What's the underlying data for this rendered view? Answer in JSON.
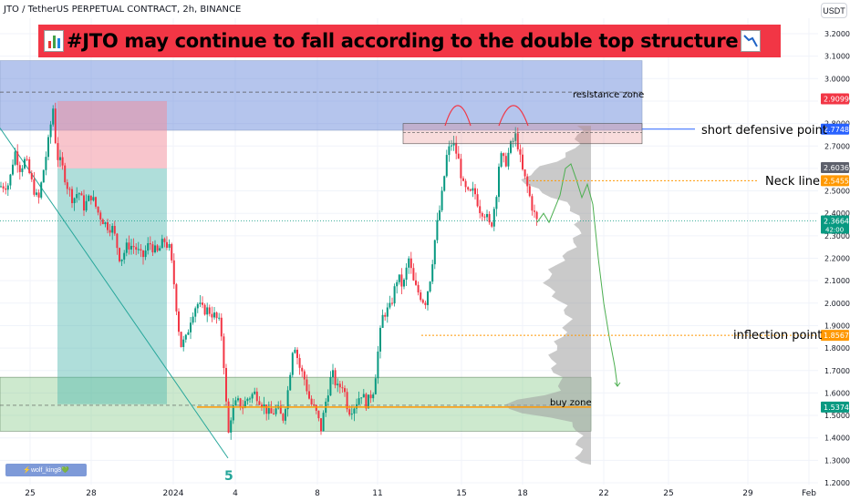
{
  "header": {
    "symbol_line": "JTO / TetherUS PERPETUAL CONTRACT, 2h, BINANCE",
    "currency_button": "USDT"
  },
  "banner": {
    "text": "#JTO may continue to fall according to the double top structure",
    "left_icon": "bar-chart-emoji-icon",
    "right_icon": "chart-decreasing-emoji-icon",
    "color": "#f23645"
  },
  "annotations": {
    "resistance_zone": "resistance zone",
    "short_defensive_point": "short defensive point",
    "neck_line": "Neck line",
    "inflection_point": "inflection point",
    "buy_zone": "buy zone",
    "wave_label": "5",
    "watermark": "⚡wolf_king8💚"
  },
  "chart_data": {
    "type": "candlestick",
    "title": "#JTO may continue to fall according to the double top structure",
    "symbol": "JTO / TetherUS PERPETUAL CONTRACT",
    "timeframe": "2h",
    "exchange": "BINANCE",
    "xlabel": "",
    "ylabel": "",
    "ylim": [
      1.2,
      3.3
    ],
    "grid": true,
    "x_tick_labels": [
      "25",
      "28",
      "2024",
      "4",
      "8",
      "11",
      "15",
      "18",
      "22",
      "25",
      "29",
      "Feb"
    ],
    "y_tick_labels": [
      "3.2000",
      "3.1000",
      "3.0000",
      "2.9000",
      "2.8000",
      "2.7000",
      "2.6000",
      "2.5000",
      "2.4000",
      "2.3000",
      "2.2000",
      "2.1000",
      "2.0000",
      "1.9000",
      "1.8000",
      "1.7000",
      "1.6000",
      "1.5000",
      "1.4000",
      "1.3000",
      "1.2000"
    ],
    "price_badges": [
      {
        "text": "2.9099",
        "value": 2.9099,
        "color": "#f23645"
      },
      {
        "text": "2.7748",
        "value": 2.7748,
        "color": "#2962ff"
      },
      {
        "text": "2.6036",
        "value": 2.6036,
        "color": "#5d606b"
      },
      {
        "text": "2.5455",
        "value": 2.5455,
        "color": "#ff9800"
      },
      {
        "text": "2.3664",
        "value": 2.3664,
        "color": "#089981",
        "countdown": "42:00"
      },
      {
        "text": "1.8567",
        "value": 1.8567,
        "color": "#ff9800"
      },
      {
        "text": "1.5374",
        "value": 1.5374,
        "color": "#089981"
      }
    ],
    "levels": {
      "resistance_zone": [
        2.77,
        3.08
      ],
      "resistance_mid": 2.94,
      "short_defensive_point": 2.7748,
      "double_top_box": [
        2.71,
        2.8
      ],
      "neck_line": 2.5455,
      "current_price": 2.3664,
      "inflection_point": 1.8567,
      "buy_zone": [
        1.43,
        1.67
      ],
      "buy_zone_line": 1.5374
    },
    "price_path": [
      [
        0,
        2.52
      ],
      [
        10,
        2.53
      ],
      [
        16,
        2.68
      ],
      [
        22,
        2.6
      ],
      [
        28,
        2.64
      ],
      [
        36,
        2.52
      ],
      [
        42,
        2.45
      ],
      [
        48,
        2.6
      ],
      [
        54,
        2.74
      ],
      [
        58,
        2.88
      ],
      [
        62,
        2.66
      ],
      [
        68,
        2.61
      ],
      [
        74,
        2.52
      ],
      [
        80,
        2.46
      ],
      [
        86,
        2.5
      ],
      [
        92,
        2.43
      ],
      [
        100,
        2.48
      ],
      [
        108,
        2.4
      ],
      [
        116,
        2.35
      ],
      [
        124,
        2.33
      ],
      [
        132,
        2.19
      ],
      [
        140,
        2.26
      ],
      [
        148,
        2.25
      ],
      [
        156,
        2.2
      ],
      [
        164,
        2.27
      ],
      [
        172,
        2.22
      ],
      [
        180,
        2.28
      ],
      [
        186,
        2.24
      ],
      [
        190,
        2.12
      ],
      [
        194,
        1.96
      ],
      [
        198,
        1.81
      ],
      [
        204,
        1.84
      ],
      [
        210,
        1.95
      ],
      [
        216,
        2.0
      ],
      [
        222,
        1.97
      ],
      [
        228,
        1.97
      ],
      [
        236,
        1.94
      ],
      [
        242,
        1.9
      ],
      [
        246,
        1.7
      ],
      [
        250,
        1.4
      ],
      [
        254,
        1.52
      ],
      [
        260,
        1.56
      ],
      [
        266,
        1.54
      ],
      [
        272,
        1.58
      ],
      [
        280,
        1.6
      ],
      [
        288,
        1.55
      ],
      [
        296,
        1.5
      ],
      [
        304,
        1.53
      ],
      [
        310,
        1.48
      ],
      [
        316,
        1.62
      ],
      [
        322,
        1.84
      ],
      [
        328,
        1.72
      ],
      [
        334,
        1.66
      ],
      [
        340,
        1.56
      ],
      [
        346,
        1.52
      ],
      [
        352,
        1.44
      ],
      [
        358,
        1.58
      ],
      [
        364,
        1.69
      ],
      [
        370,
        1.62
      ],
      [
        376,
        1.64
      ],
      [
        382,
        1.52
      ],
      [
        388,
        1.54
      ],
      [
        396,
        1.6
      ],
      [
        402,
        1.55
      ],
      [
        410,
        1.62
      ],
      [
        416,
        1.84
      ],
      [
        420,
        1.95
      ],
      [
        428,
        1.98
      ],
      [
        436,
        2.12
      ],
      [
        442,
        2.07
      ],
      [
        448,
        2.2
      ],
      [
        454,
        2.08
      ],
      [
        460,
        2.04
      ],
      [
        466,
        2.0
      ],
      [
        472,
        2.12
      ],
      [
        478,
        2.32
      ],
      [
        484,
        2.46
      ],
      [
        490,
        2.66
      ],
      [
        496,
        2.72
      ],
      [
        502,
        2.65
      ],
      [
        508,
        2.52
      ],
      [
        514,
        2.48
      ],
      [
        520,
        2.5
      ],
      [
        526,
        2.42
      ],
      [
        532,
        2.4
      ],
      [
        538,
        2.33
      ],
      [
        544,
        2.48
      ],
      [
        548,
        2.66
      ],
      [
        554,
        2.62
      ],
      [
        560,
        2.7
      ],
      [
        566,
        2.75
      ],
      [
        572,
        2.6
      ],
      [
        578,
        2.52
      ],
      [
        584,
        2.42
      ],
      [
        589,
        2.36
      ]
    ],
    "projection_path": [
      [
        589,
        2.36
      ],
      [
        596,
        2.4
      ],
      [
        602,
        2.36
      ],
      [
        608,
        2.42
      ],
      [
        614,
        2.48
      ],
      [
        620,
        2.6
      ],
      [
        626,
        2.62
      ],
      [
        632,
        2.55
      ],
      [
        638,
        2.47
      ],
      [
        644,
        2.53
      ],
      [
        650,
        2.44
      ],
      [
        656,
        2.2
      ],
      [
        662,
        2.0
      ],
      [
        668,
        1.85
      ],
      [
        674,
        1.72
      ],
      [
        677,
        1.63
      ]
    ],
    "trendline": {
      "from": [
        0,
        2.78
      ],
      "to": [
        250,
        1.31
      ]
    }
  }
}
